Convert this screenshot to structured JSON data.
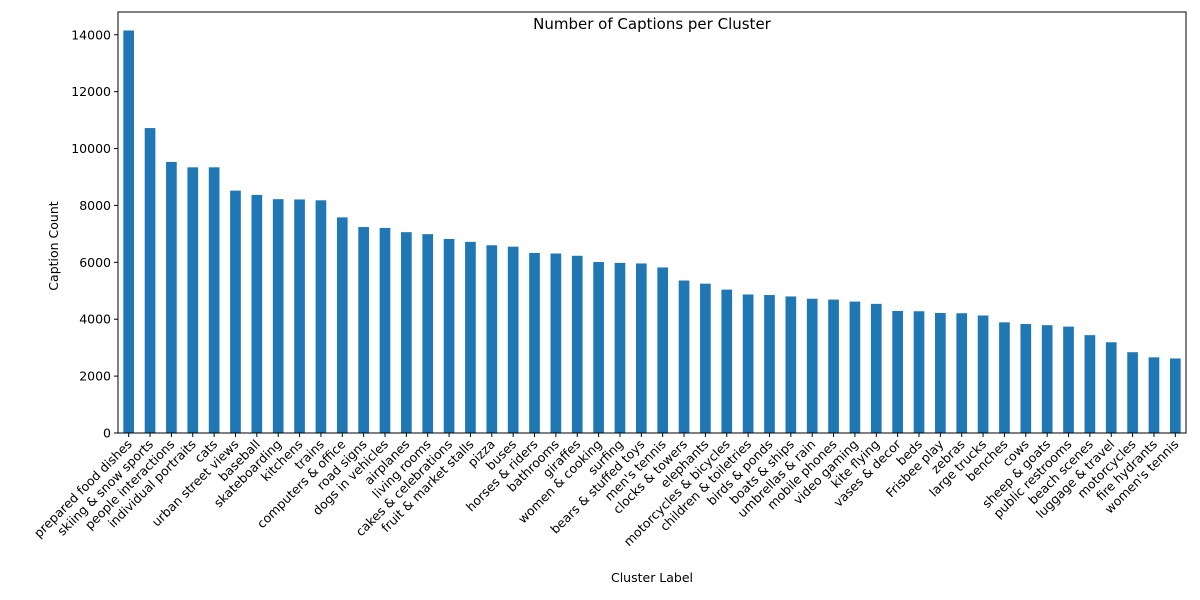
{
  "chart_data": {
    "type": "bar",
    "title": "Number of Captions per Cluster",
    "xlabel": "Cluster Label",
    "ylabel": "Caption Count",
    "ylim": [
      0,
      14800
    ],
    "yticks": [
      0,
      2000,
      4000,
      6000,
      8000,
      10000,
      12000,
      14000
    ],
    "grid": false,
    "bar_color": "#1f77b4",
    "categories": [
      "prepared food dishes",
      "skiing & snow sports",
      "people interactions",
      "individual portraits",
      "cats",
      "urban street views",
      "baseball",
      "skateboarding",
      "kitchens",
      "trains",
      "computers & office",
      "road signs",
      "dogs in vehicles",
      "airplanes",
      "living rooms",
      "cakes & celebrations",
      "fruit & market stalls",
      "pizza",
      "buses",
      "horses & riders",
      "bathrooms",
      "giraffes",
      "women & cooking",
      "surfing",
      "bears & stuffed toys",
      "men's tennis",
      "clocks & towers",
      "elephants",
      "motorcycles & bicycles",
      "children & toiletries",
      "birds & ponds",
      "boats & ships",
      "umbrellas & rain",
      "mobile phones",
      "video gaming",
      "kite flying",
      "vases & decor",
      "beds",
      "Frisbee play",
      "zebras",
      "large trucks",
      "benches",
      "cows",
      "sheep & goats",
      "public restrooms",
      "beach scenes",
      "luggage & travel",
      "motorcycles",
      "fire hydrants",
      "women's tennis"
    ],
    "values": [
      14150,
      10720,
      9530,
      9340,
      9340,
      8520,
      8370,
      8220,
      8210,
      8180,
      7580,
      7240,
      7210,
      7060,
      6990,
      6820,
      6720,
      6600,
      6550,
      6330,
      6310,
      6230,
      6010,
      5980,
      5960,
      5820,
      5360,
      5250,
      5040,
      4870,
      4850,
      4800,
      4720,
      4690,
      4620,
      4540,
      4290,
      4280,
      4220,
      4210,
      4130,
      3890,
      3830,
      3790,
      3740,
      3440,
      3190,
      2840,
      2660,
      2620
    ]
  }
}
